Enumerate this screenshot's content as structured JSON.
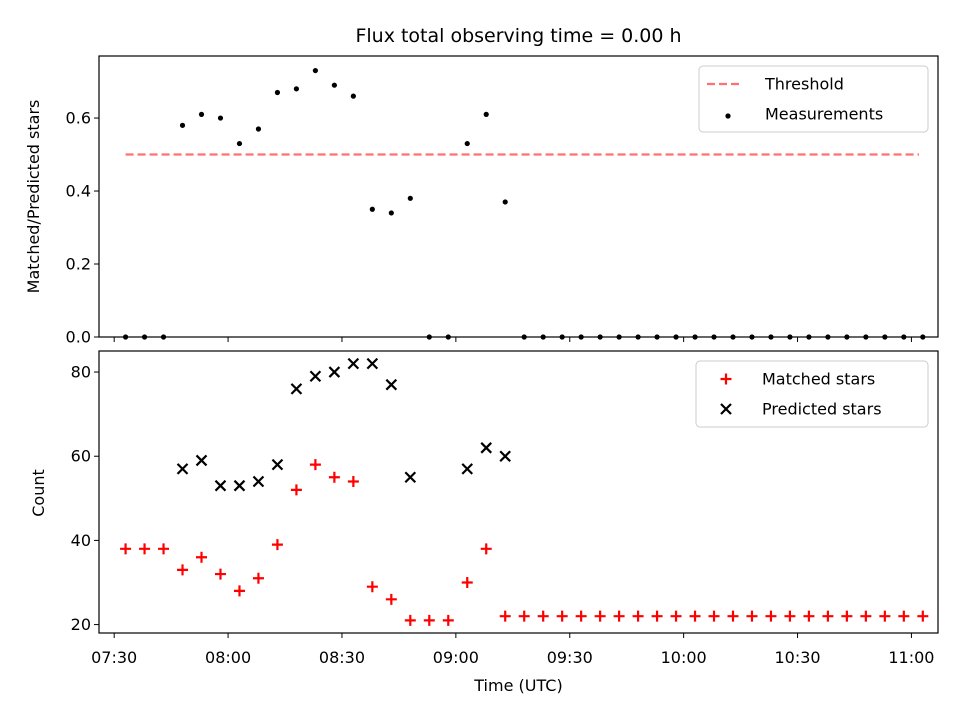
{
  "chart_data": [
    {
      "type": "scatter",
      "title": "Flux total observing time = 0.00 h",
      "xlabel": "",
      "ylabel": "Matched/Predicted stars",
      "xlim": [
        "07:26",
        "11:07"
      ],
      "ylim": [
        0,
        0.77
      ],
      "yticks": [
        0.0,
        0.2,
        0.4,
        0.6
      ],
      "ytick_labels": [
        "0.0",
        "0.2",
        "0.4",
        "0.6"
      ],
      "grid": false,
      "legend_position": "top-right",
      "series": [
        {
          "name": "Threshold",
          "kind": "line",
          "style": "dashed",
          "color": "#ff7070",
          "x": [
            "07:33",
            "11:02"
          ],
          "y": [
            0.5,
            0.5
          ]
        },
        {
          "name": "Measurements",
          "kind": "scatter",
          "marker": "dot",
          "color": "#000000",
          "x": [
            "07:33",
            "07:38",
            "07:43",
            "07:48",
            "07:53",
            "07:58",
            "08:03",
            "08:08",
            "08:13",
            "08:18",
            "08:23",
            "08:28",
            "08:33",
            "08:38",
            "08:43",
            "08:48",
            "08:53",
            "08:58",
            "09:03",
            "09:08",
            "09:13",
            "09:18",
            "09:23",
            "09:28",
            "09:33",
            "09:38",
            "09:43",
            "09:48",
            "09:53",
            "09:58",
            "10:03",
            "10:08",
            "10:13",
            "10:18",
            "10:23",
            "10:28",
            "10:33",
            "10:38",
            "10:43",
            "10:48",
            "10:53",
            "10:58",
            "11:03"
          ],
          "y": [
            0.0,
            0.0,
            0.0,
            0.58,
            0.61,
            0.6,
            0.53,
            0.57,
            0.67,
            0.68,
            0.73,
            0.69,
            0.66,
            0.35,
            0.34,
            0.38,
            0.0,
            0.0,
            0.53,
            0.61,
            0.37,
            0.0,
            0.0,
            0.0,
            0.0,
            0.0,
            0.0,
            0.0,
            0.0,
            0.0,
            0.0,
            0.0,
            0.0,
            0.0,
            0.0,
            0.0,
            0.0,
            0.0,
            0.0,
            0.0,
            0.0,
            0.0,
            0.0
          ]
        }
      ]
    },
    {
      "type": "scatter",
      "title": "",
      "xlabel": "Time (UTC)",
      "ylabel": "Count",
      "xlim": [
        "07:26",
        "11:07"
      ],
      "ylim": [
        18,
        85
      ],
      "xticks": [
        "07:30",
        "08:00",
        "08:30",
        "09:00",
        "09:30",
        "10:00",
        "10:30",
        "11:00"
      ],
      "yticks": [
        20,
        40,
        60,
        80
      ],
      "ytick_labels": [
        "20",
        "40",
        "60",
        "80"
      ],
      "grid": false,
      "legend_position": "top-right",
      "series": [
        {
          "name": "Matched stars",
          "kind": "scatter",
          "marker": "plus",
          "color": "#ff0000",
          "x": [
            "07:33",
            "07:38",
            "07:43",
            "07:48",
            "07:53",
            "07:58",
            "08:03",
            "08:08",
            "08:13",
            "08:18",
            "08:23",
            "08:28",
            "08:33",
            "08:38",
            "08:43",
            "08:48",
            "08:53",
            "08:58",
            "09:03",
            "09:08",
            "09:13",
            "09:18",
            "09:23",
            "09:28",
            "09:33",
            "09:38",
            "09:43",
            "09:48",
            "09:53",
            "09:58",
            "10:03",
            "10:08",
            "10:13",
            "10:18",
            "10:23",
            "10:28",
            "10:33",
            "10:38",
            "10:43",
            "10:48",
            "10:53",
            "10:58",
            "11:03"
          ],
          "y": [
            38,
            38,
            38,
            33,
            36,
            32,
            28,
            31,
            39,
            52,
            58,
            55,
            54,
            29,
            26,
            21,
            21,
            21,
            30,
            38,
            22,
            22,
            22,
            22,
            22,
            22,
            22,
            22,
            22,
            22,
            22,
            22,
            22,
            22,
            22,
            22,
            22,
            22,
            22,
            22,
            22,
            22,
            22
          ]
        },
        {
          "name": "Predicted stars",
          "kind": "scatter",
          "marker": "x",
          "color": "#000000",
          "x": [
            "07:48",
            "07:53",
            "07:58",
            "08:03",
            "08:08",
            "08:13",
            "08:18",
            "08:23",
            "08:28",
            "08:33",
            "08:38",
            "08:43",
            "08:48",
            "09:03",
            "09:08",
            "09:13"
          ],
          "y": [
            57,
            59,
            53,
            53,
            54,
            58,
            76,
            79,
            80,
            82,
            82,
            77,
            55,
            57,
            62,
            60
          ]
        }
      ]
    }
  ]
}
